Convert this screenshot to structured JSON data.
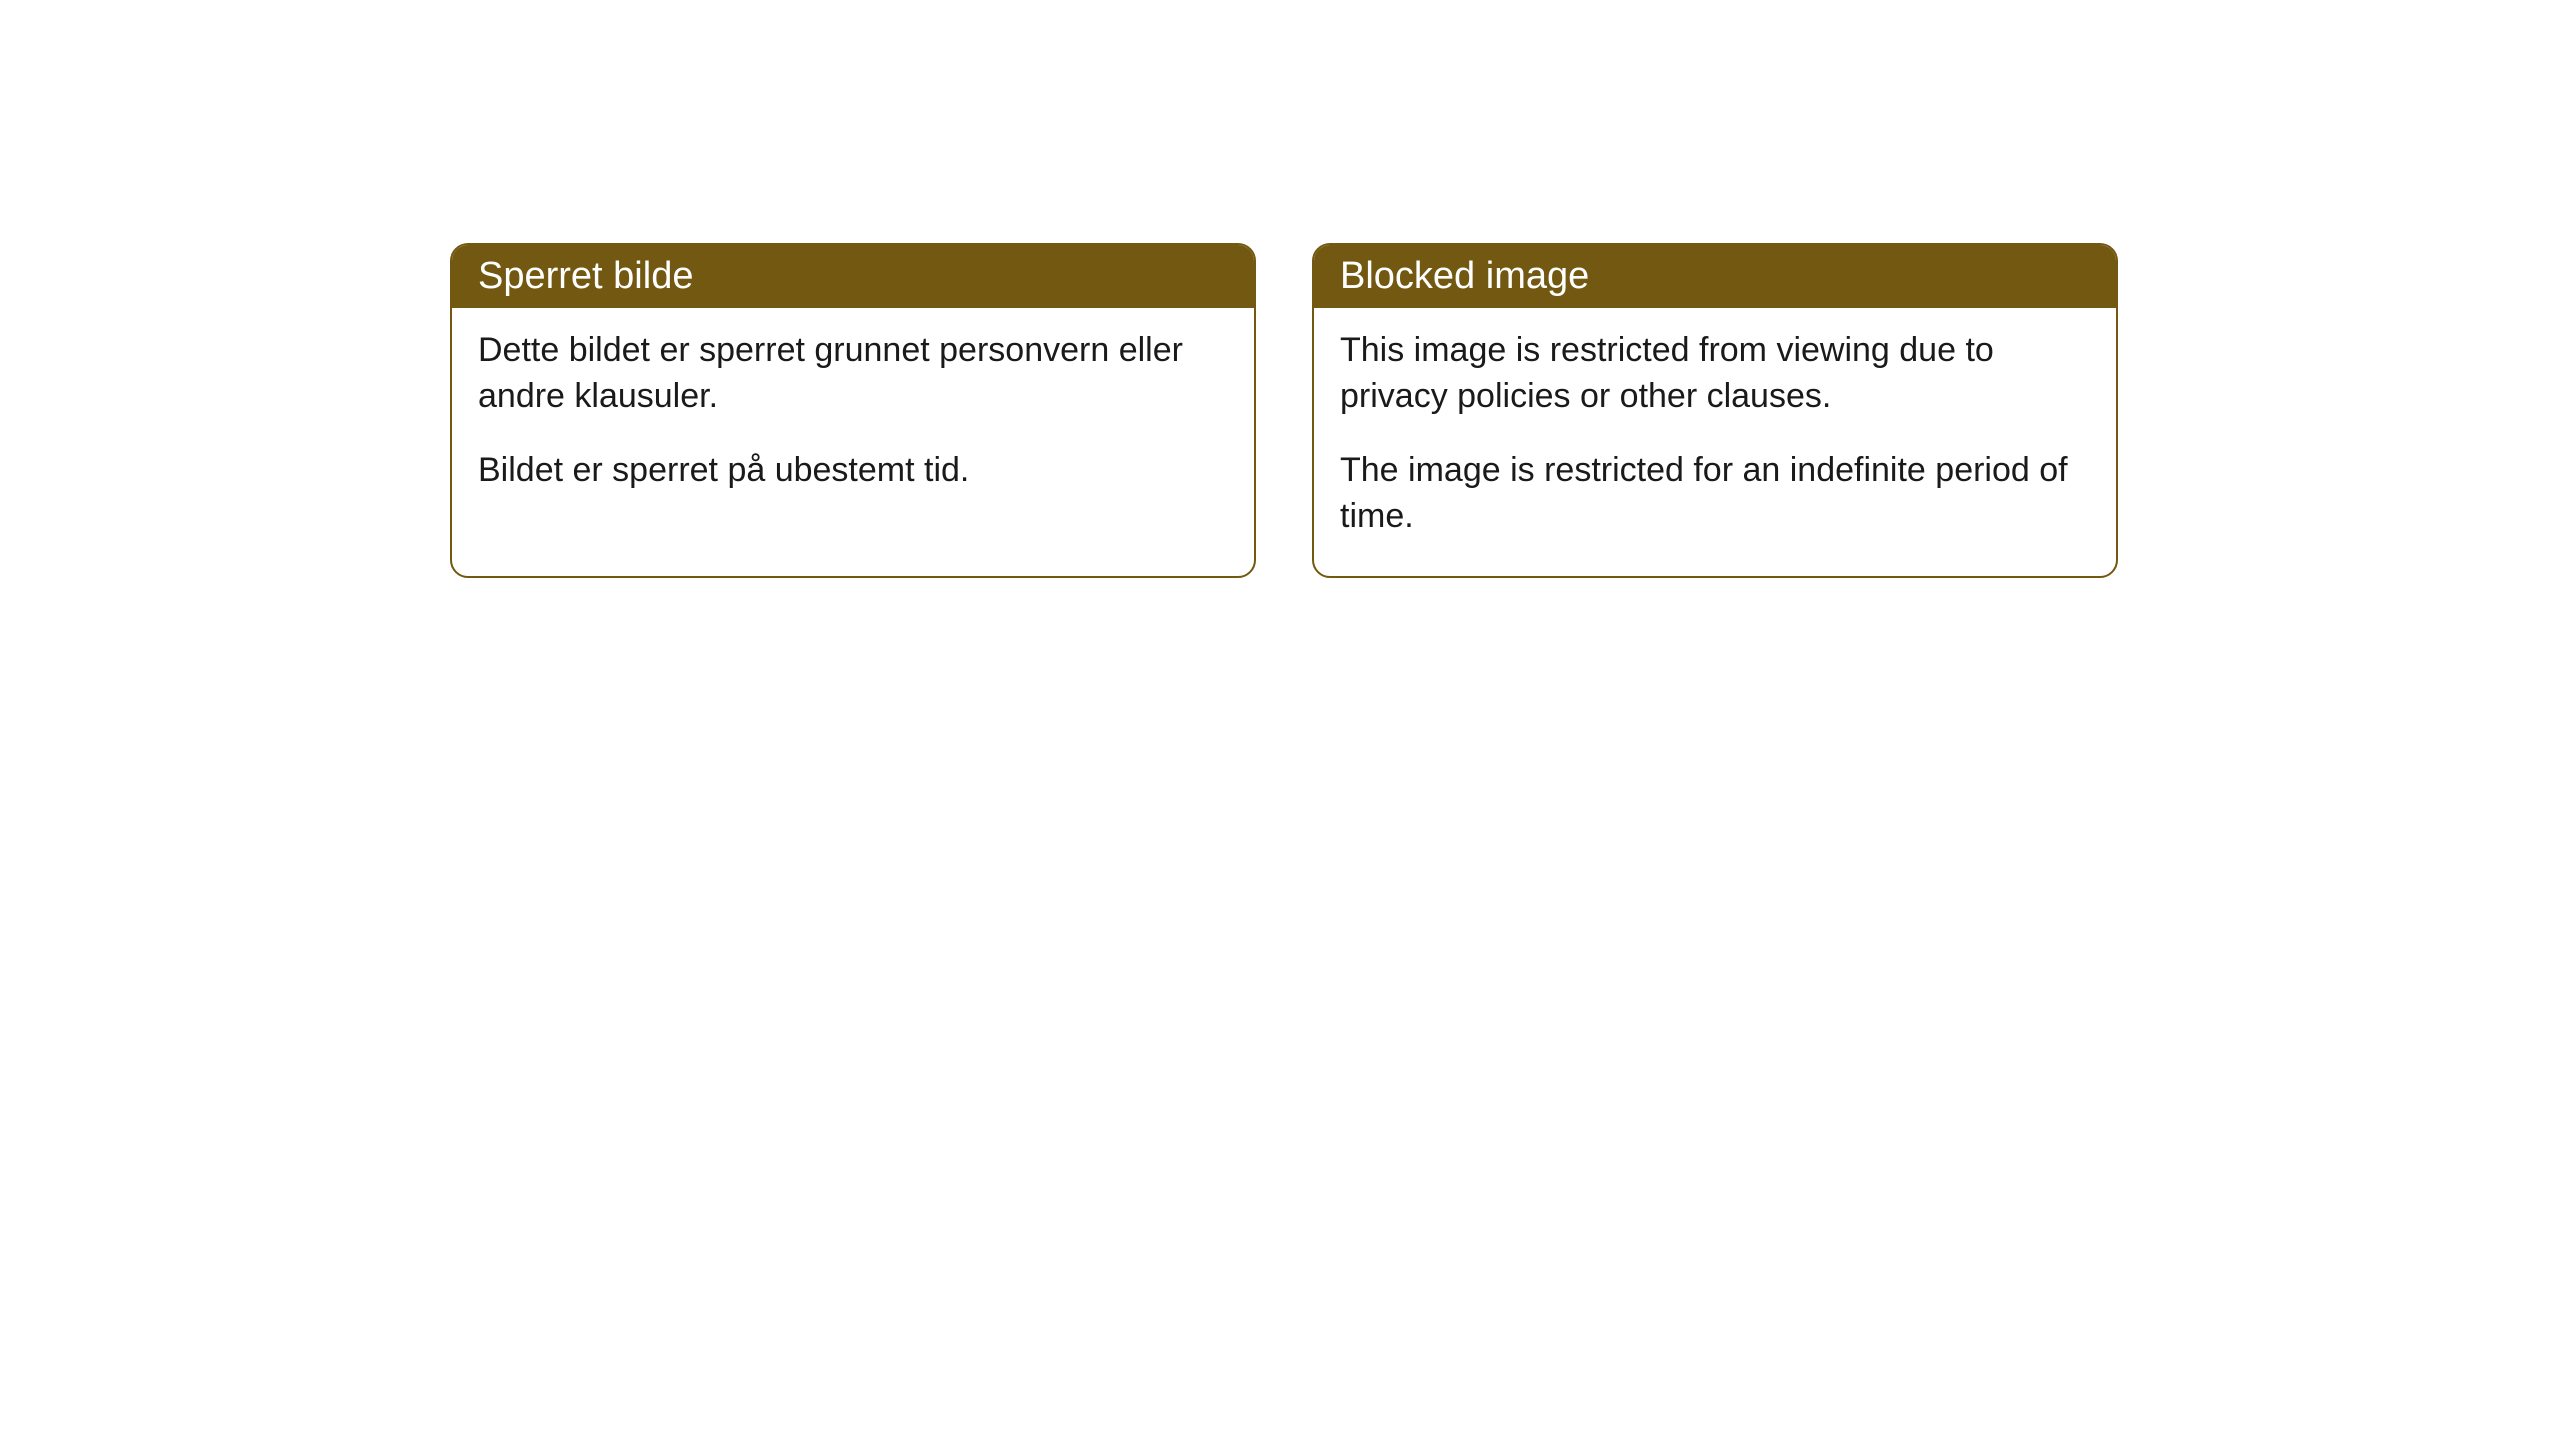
{
  "cards": [
    {
      "title": "Sperret bilde",
      "paragraph1": "Dette bildet er sperret grunnet personvern eller andre klausuler.",
      "paragraph2": "Bildet er sperret på ubestemt tid."
    },
    {
      "title": "Blocked image",
      "paragraph1": "This image is restricted from viewing due to privacy policies or other clauses.",
      "paragraph2": "The image is restricted for an indefinite period of time."
    }
  ],
  "styling": {
    "header_bg_color": "#735811",
    "header_text_color": "#ffffff",
    "border_color": "#735811",
    "body_bg_color": "#ffffff",
    "body_text_color": "#1a1a1a",
    "border_radius": 18,
    "header_fontsize": 38,
    "body_fontsize": 34
  }
}
